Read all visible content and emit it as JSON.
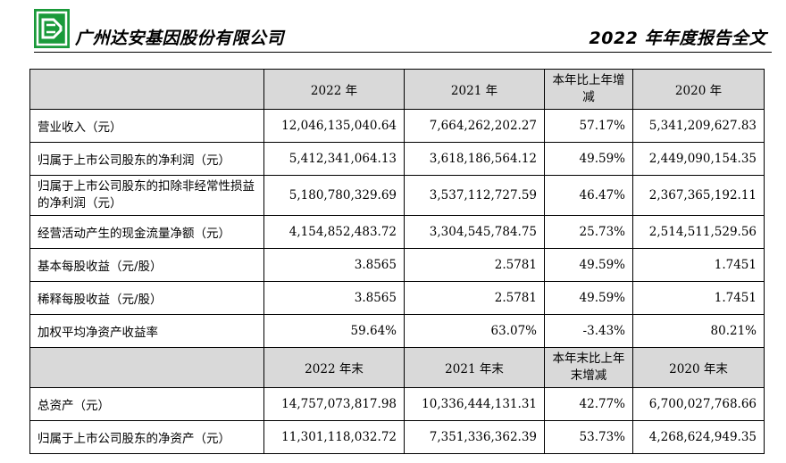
{
  "header": {
    "company": "广州达安基因股份有限公司",
    "report_title": "2022 年年度报告全文",
    "logo": "daan-gene-logo"
  },
  "table": {
    "header1": [
      "",
      "2022 年",
      "2021 年",
      "本年比上年增减",
      "2020 年"
    ],
    "rows1": [
      [
        "营业收入（元）",
        "12,046,135,040.64",
        "7,664,262,202.27",
        "57.17%",
        "5,341,209,627.83"
      ],
      [
        "归属于上市公司股东的净利润（元）",
        "5,412,341,064.13",
        "3,618,186,564.12",
        "49.59%",
        "2,449,090,154.35"
      ],
      [
        "归属于上市公司股东的扣除非经常性损益的净利润（元）",
        "5,180,780,329.69",
        "3,537,112,727.59",
        "46.47%",
        "2,367,365,192.11"
      ],
      [
        "经营活动产生的现金流量净额（元）",
        "4,154,852,483.72",
        "3,304,545,784.75",
        "25.73%",
        "2,514,511,529.56"
      ],
      [
        "基本每股收益（元/股）",
        "3.8565",
        "2.5781",
        "49.59%",
        "1.7451"
      ],
      [
        "稀释每股收益（元/股）",
        "3.8565",
        "2.5781",
        "49.59%",
        "1.7451"
      ],
      [
        "加权平均净资产收益率",
        "59.64%",
        "63.07%",
        "-3.43%",
        "80.21%"
      ]
    ],
    "header2": [
      "",
      "2022 年末",
      "2021 年末",
      "本年末比上年末增减",
      "2020 年末"
    ],
    "rows2": [
      [
        "总资产（元）",
        "14,757,073,817.98",
        "10,336,444,131.31",
        "42.77%",
        "6,700,027,768.66"
      ],
      [
        "归属于上市公司股东的净资产（元）",
        "11,301,118,032.72",
        "7,351,336,362.39",
        "53.73%",
        "4,268,624,949.35"
      ]
    ]
  }
}
